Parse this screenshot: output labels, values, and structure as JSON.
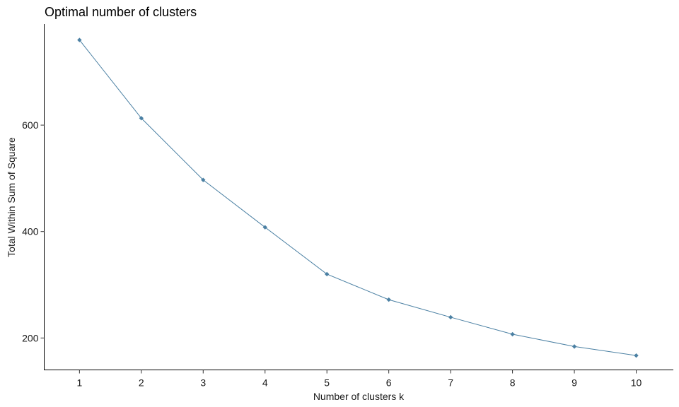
{
  "chart_data": {
    "type": "line",
    "title": "Optimal number of clusters",
    "xlabel": "Number of clusters k",
    "ylabel": "Total Within Sum of Square",
    "x": [
      1,
      2,
      3,
      4,
      5,
      6,
      7,
      8,
      9,
      10
    ],
    "series": [
      {
        "values": [
          760,
          613,
          497,
          408,
          320,
          272,
          239,
          207,
          184,
          167
        ]
      }
    ],
    "x_ticks": [
      "1",
      "2",
      "3",
      "4",
      "5",
      "6",
      "7",
      "8",
      "9",
      "10"
    ],
    "y_ticks": [
      200,
      400,
      600
    ],
    "xlim": [
      0.43,
      10.6
    ],
    "ylim": [
      140,
      790
    ],
    "grid": false,
    "legend": "none",
    "line_color": "#4b80a3",
    "point_color": "#4b80a3"
  }
}
